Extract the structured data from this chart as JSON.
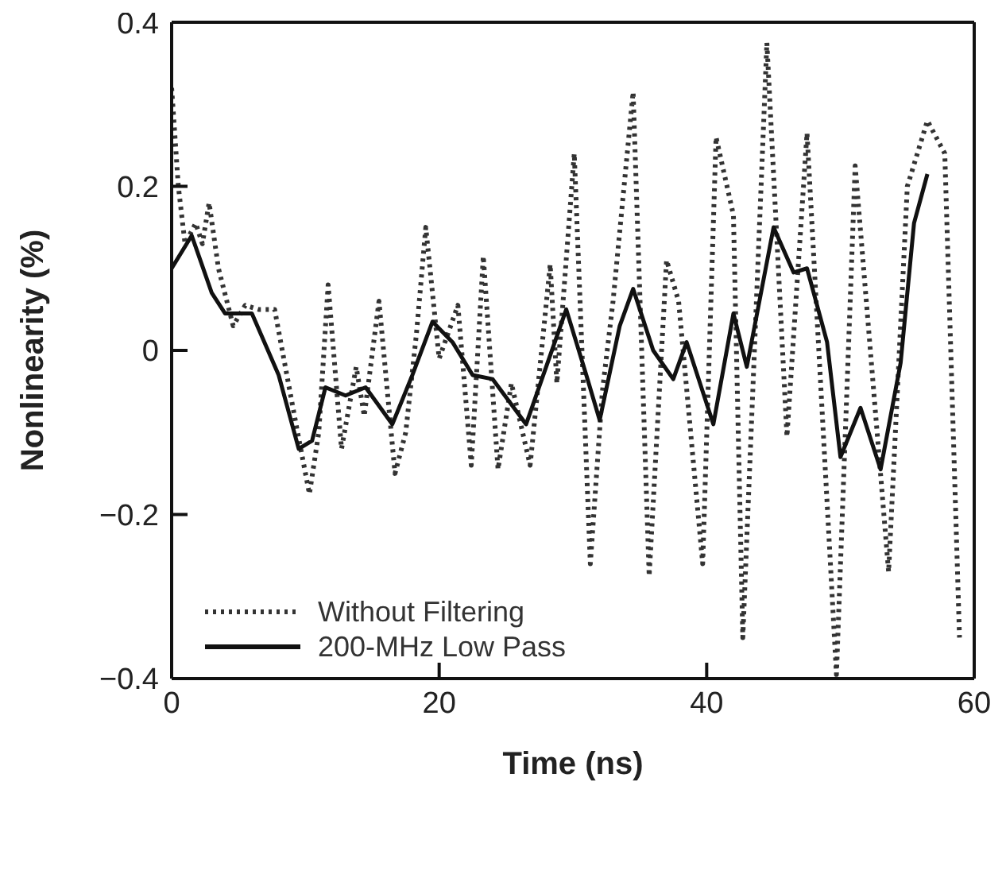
{
  "chart_data": {
    "type": "line",
    "xlabel": "Time (ns)",
    "ylabel": "Nonlinearity (%)",
    "xlim": [
      0,
      60
    ],
    "xticks": [
      0,
      20,
      40,
      60
    ],
    "ylim": [
      -0.4,
      0.4
    ],
    "yticks": [
      {
        "value": -0.4,
        "label": "−0.4"
      },
      {
        "value": -0.2,
        "label": "−0.2"
      },
      0,
      0.2,
      0.4
    ],
    "legend": "bottom left",
    "marker": "none",
    "series": [
      {
        "name": "Without Filtering",
        "color": "#333333",
        "line_style": "dotted",
        "x": [
          0,
          0.5,
          1,
          1.8,
          2.3,
          2.8,
          3.5,
          4.6,
          5.5,
          6.5,
          7.7,
          8.5,
          9.3,
          10.3,
          11,
          11.7,
          12.7,
          13.8,
          14.4,
          15.5,
          16.7,
          17.5,
          18.3,
          19,
          20,
          21.4,
          22.4,
          23.3,
          24.4,
          25.4,
          26.8,
          28.3,
          28.8,
          30.1,
          31.3,
          32.2,
          33,
          34.5,
          35.7,
          37,
          37.9,
          39.7,
          40.7,
          42,
          42.7,
          44.5,
          46,
          47.5,
          49.7,
          51.1,
          53.6,
          55,
          56.5,
          57.8,
          58.9
        ],
        "values": [
          0.32,
          0.2,
          0.13,
          0.155,
          0.13,
          0.18,
          0.1,
          0.03,
          0.055,
          0.05,
          0.05,
          -0.02,
          -0.09,
          -0.175,
          -0.1,
          0.08,
          -0.12,
          -0.02,
          -0.08,
          0.06,
          -0.15,
          -0.1,
          0.02,
          0.15,
          -0.01,
          0.055,
          -0.14,
          0.115,
          -0.145,
          -0.04,
          -0.14,
          0.105,
          -0.04,
          0.24,
          -0.26,
          -0.05,
          0.06,
          0.315,
          -0.275,
          0.11,
          0.06,
          -0.26,
          0.26,
          0.165,
          -0.35,
          0.375,
          -0.105,
          0.265,
          -0.395,
          0.225,
          -0.27,
          0.2,
          0.28,
          0.24,
          -0.35
        ]
      },
      {
        "name": "200-MHz Low Pass",
        "color": "#111111",
        "line_style": "solid",
        "x": [
          0,
          1.5,
          3,
          4,
          6,
          8,
          9.5,
          10.5,
          11.5,
          13,
          14.5,
          16.5,
          18,
          19.5,
          21,
          22.5,
          24,
          26.5,
          28,
          29.5,
          31,
          32,
          33.5,
          34.5,
          36,
          37.5,
          38.5,
          40.5,
          42,
          43,
          45,
          46.5,
          47.5,
          49,
          50,
          51.5,
          53,
          54.5,
          55.5,
          56.5
        ],
        "values": [
          0.1,
          0.14,
          0.07,
          0.045,
          0.045,
          -0.03,
          -0.12,
          -0.11,
          -0.045,
          -0.055,
          -0.045,
          -0.09,
          -0.03,
          0.035,
          0.01,
          -0.03,
          -0.035,
          -0.09,
          -0.02,
          0.05,
          -0.03,
          -0.085,
          0.03,
          0.075,
          0,
          -0.035,
          0.01,
          -0.09,
          0.045,
          -0.02,
          0.15,
          0.095,
          0.1,
          0.01,
          -0.13,
          -0.07,
          -0.145,
          -0.015,
          0.155,
          0.215
        ]
      }
    ]
  }
}
